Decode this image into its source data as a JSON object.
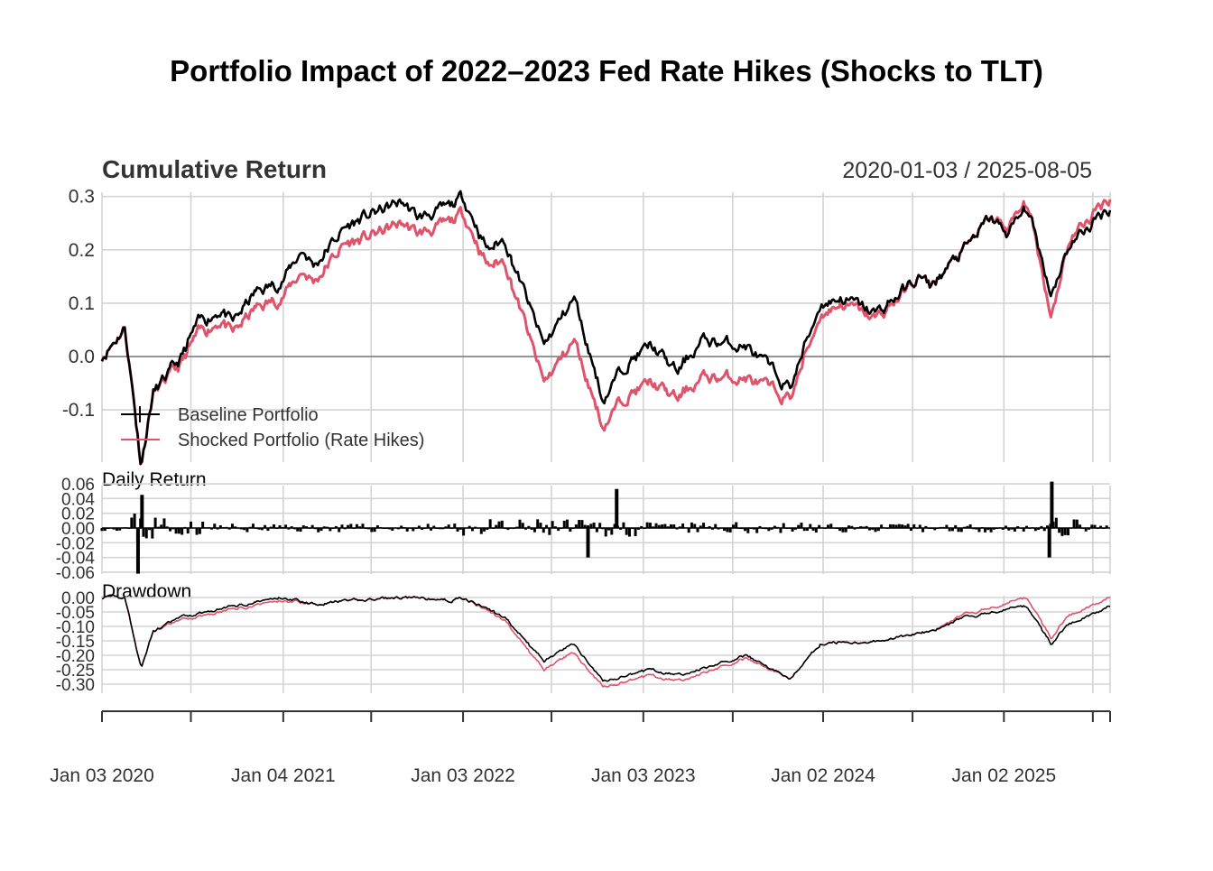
{
  "title": "Portfolio Impact of 2022–2023 Fed Rate Hikes (Shocks to TLT)",
  "date_range_label": "2020-01-03 / 2025-08-05",
  "colors": {
    "baseline": "#000000",
    "shocked": "#DF536B",
    "grid": "#D3D3D3",
    "zero_line": "#888888"
  },
  "x_tick_labels": [
    "Jan 03 2020",
    "Jan 04 2021",
    "Jan 03 2022",
    "Jan 03 2023",
    "Jan 02 2024",
    "Jan 02 2025"
  ],
  "chart_data": [
    {
      "type": "line",
      "title": "Cumulative Return",
      "x_range": [
        "2020-01-03",
        "2025-08-05"
      ],
      "ylim": [
        -0.2,
        0.31
      ],
      "y_ticks": [
        "0.3",
        "0.2",
        "0.1",
        "0.0",
        "-0.1"
      ],
      "y_tick_values": [
        0.3,
        0.2,
        0.1,
        0.0,
        -0.1
      ],
      "grid": true,
      "legend_position": "bottom-left",
      "x": [
        "2020-01-03",
        "2020-02-19",
        "2020-03-23",
        "2020-04-15",
        "2020-06-08",
        "2020-07-15",
        "2020-09-02",
        "2020-09-23",
        "2020-11-09",
        "2020-12-31",
        "2021-02-12",
        "2021-03-08",
        "2021-05-07",
        "2021-06-15",
        "2021-09-02",
        "2021-10-04",
        "2021-12-10",
        "2022-01-03",
        "2022-02-23",
        "2022-03-29",
        "2022-06-16",
        "2022-08-16",
        "2022-10-14",
        "2022-12-01",
        "2023-01-20",
        "2023-03-13",
        "2023-05-01",
        "2023-07-31",
        "2023-10-27",
        "2023-12-28",
        "2024-02-09",
        "2024-04-19",
        "2024-07-16",
        "2024-08-05",
        "2024-10-15",
        "2024-12-06",
        "2025-01-10",
        "2025-02-19",
        "2025-04-08",
        "2025-05-15",
        "2025-08-05"
      ],
      "series": [
        {
          "name": "Baseline Portfolio",
          "color": "#000000",
          "values": [
            0.0,
            0.055,
            -0.2,
            -0.07,
            -0.01,
            0.06,
            0.09,
            0.06,
            0.12,
            0.14,
            0.2,
            0.17,
            0.24,
            0.26,
            0.29,
            0.26,
            0.28,
            0.3,
            0.2,
            0.22,
            0.02,
            0.11,
            -0.08,
            -0.01,
            0.02,
            -0.03,
            0.03,
            0.02,
            -0.06,
            0.1,
            0.11,
            0.08,
            0.15,
            0.13,
            0.2,
            0.26,
            0.23,
            0.28,
            0.12,
            0.21,
            0.28
          ]
        },
        {
          "name": "Shocked Portfolio (Rate Hikes)",
          "color": "#DF536B",
          "values": [
            0.0,
            0.055,
            -0.2,
            -0.07,
            -0.02,
            0.04,
            0.07,
            0.04,
            0.09,
            0.11,
            0.16,
            0.14,
            0.21,
            0.22,
            0.25,
            0.23,
            0.25,
            0.27,
            0.17,
            0.18,
            -0.05,
            0.03,
            -0.13,
            -0.07,
            -0.05,
            -0.08,
            -0.04,
            -0.04,
            -0.08,
            0.08,
            0.1,
            0.07,
            0.15,
            0.13,
            0.2,
            0.26,
            0.24,
            0.29,
            0.08,
            0.22,
            0.3
          ]
        }
      ]
    },
    {
      "type": "bar",
      "title": "Daily Return",
      "ylim": [
        -0.07,
        0.07
      ],
      "y_ticks": [
        "0.06",
        "0.04",
        "0.02",
        "0.00",
        "-0.02",
        "-0.04",
        "-0.06"
      ],
      "y_tick_values": [
        0.06,
        0.04,
        0.02,
        0.0,
        -0.02,
        -0.04,
        -0.06
      ],
      "grid": true,
      "notable_values": [
        {
          "x": "2020-03-16",
          "y": -0.062
        },
        {
          "x": "2020-03-24",
          "y": 0.045
        },
        {
          "x": "2022-09-13",
          "y": -0.04
        },
        {
          "x": "2022-11-10",
          "y": 0.053
        },
        {
          "x": "2025-04-04",
          "y": -0.04
        },
        {
          "x": "2025-04-09",
          "y": 0.063
        }
      ]
    },
    {
      "type": "line",
      "title": "Drawdown",
      "ylim": [
        -0.33,
        0.01
      ],
      "y_ticks": [
        "0.00",
        "-0.05",
        "-0.10",
        "-0.15",
        "-0.20",
        "-0.25",
        "-0.30"
      ],
      "y_tick_values": [
        0.0,
        -0.05,
        -0.1,
        -0.15,
        -0.2,
        -0.25,
        -0.3
      ],
      "grid": true,
      "x": [
        "2020-01-03",
        "2020-02-19",
        "2020-03-23",
        "2020-04-15",
        "2020-06-08",
        "2020-09-23",
        "2020-12-31",
        "2021-03-08",
        "2021-09-02",
        "2021-12-10",
        "2022-01-03",
        "2022-03-29",
        "2022-06-16",
        "2022-08-16",
        "2022-10-14",
        "2023-01-20",
        "2023-03-13",
        "2023-07-31",
        "2023-10-27",
        "2023-12-28",
        "2024-04-19",
        "2024-08-05",
        "2024-10-15",
        "2025-01-10",
        "2025-02-19",
        "2025-04-08",
        "2025-05-15",
        "2025-08-05"
      ],
      "series": [
        {
          "name": "Baseline Portfolio",
          "color": "#000000",
          "values": [
            0.0,
            0.0,
            -0.245,
            -0.12,
            -0.07,
            -0.03,
            0.0,
            -0.02,
            0.0,
            -0.01,
            0.0,
            -0.07,
            -0.22,
            -0.16,
            -0.29,
            -0.25,
            -0.27,
            -0.2,
            -0.28,
            -0.16,
            -0.15,
            -0.12,
            -0.07,
            -0.04,
            -0.03,
            -0.16,
            -0.09,
            -0.03
          ]
        },
        {
          "name": "Shocked Portfolio (Rate Hikes)",
          "color": "#DF536B",
          "values": [
            0.0,
            0.0,
            -0.245,
            -0.12,
            -0.08,
            -0.04,
            -0.01,
            -0.02,
            0.0,
            -0.01,
            0.0,
            -0.08,
            -0.25,
            -0.19,
            -0.31,
            -0.27,
            -0.29,
            -0.21,
            -0.28,
            -0.16,
            -0.15,
            -0.12,
            -0.06,
            -0.02,
            0.0,
            -0.14,
            -0.06,
            0.0
          ]
        }
      ]
    }
  ]
}
